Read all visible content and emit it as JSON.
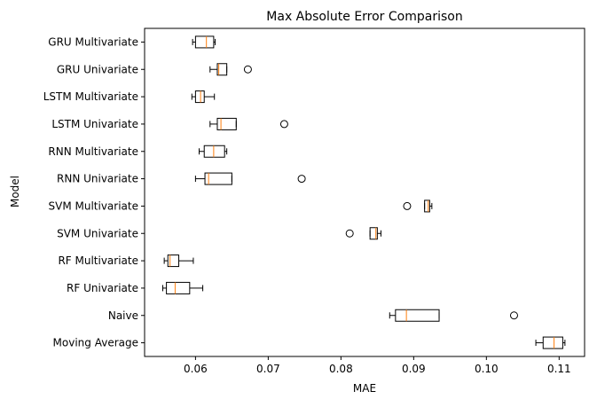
{
  "chart_data": {
    "type": "boxplot",
    "orientation": "horizontal",
    "title": "Max Absolute Error Comparison",
    "xlabel": "MAE",
    "ylabel": "Model",
    "xlim": [
      0.053,
      0.1135
    ],
    "xticks": [
      0.06,
      0.07,
      0.08,
      0.09,
      0.1,
      0.11
    ],
    "xtick_labels": [
      "0.06",
      "0.07",
      "0.08",
      "0.09",
      "0.10",
      "0.11"
    ],
    "grid": false,
    "box_color": "#000000",
    "median_color": "#ff7f0e",
    "categories": [
      "GRU Multivariate",
      "GRU Univariate",
      "LSTM Multivariate",
      "LSTM Univariate",
      "RNN Multivariate",
      "RNN Univariate",
      "SVM Multivariate",
      "SVM Univariate",
      "RF Multivariate",
      "RF Univariate",
      "Naive",
      "Moving Average"
    ],
    "boxes": [
      {
        "whislo": 0.0596,
        "q1": 0.06,
        "med": 0.0615,
        "q3": 0.0625,
        "whishi": 0.0627,
        "fliers": []
      },
      {
        "whislo": 0.062,
        "q1": 0.063,
        "med": 0.0632,
        "q3": 0.0643,
        "whishi": 0.0643,
        "fliers": [
          0.0672
        ]
      },
      {
        "whislo": 0.0595,
        "q1": 0.06,
        "med": 0.0607,
        "q3": 0.0612,
        "whishi": 0.0626,
        "fliers": []
      },
      {
        "whislo": 0.062,
        "q1": 0.063,
        "med": 0.0635,
        "q3": 0.0656,
        "whishi": 0.0656,
        "fliers": [
          0.0722
        ]
      },
      {
        "whislo": 0.0605,
        "q1": 0.0612,
        "med": 0.0625,
        "q3": 0.064,
        "whishi": 0.0643,
        "fliers": []
      },
      {
        "whislo": 0.06,
        "q1": 0.0613,
        "med": 0.0618,
        "q3": 0.065,
        "whishi": 0.065,
        "fliers": [
          0.0746
        ]
      },
      {
        "whislo": 0.0915,
        "q1": 0.0915,
        "med": 0.092,
        "q3": 0.0922,
        "whishi": 0.0925,
        "fliers": [
          0.0891
        ]
      },
      {
        "whislo": 0.084,
        "q1": 0.084,
        "med": 0.0848,
        "q3": 0.085,
        "whishi": 0.0855,
        "fliers": [
          0.0812
        ]
      },
      {
        "whislo": 0.0557,
        "q1": 0.0562,
        "med": 0.0565,
        "q3": 0.0577,
        "whishi": 0.0597,
        "fliers": []
      },
      {
        "whislo": 0.0555,
        "q1": 0.056,
        "med": 0.0572,
        "q3": 0.0592,
        "whishi": 0.061,
        "fliers": []
      },
      {
        "whislo": 0.0867,
        "q1": 0.0875,
        "med": 0.089,
        "q3": 0.0935,
        "whishi": 0.0935,
        "fliers": [
          0.1038
        ]
      },
      {
        "whislo": 0.1068,
        "q1": 0.1078,
        "med": 0.1093,
        "q3": 0.1105,
        "whishi": 0.1108,
        "fliers": []
      }
    ]
  }
}
